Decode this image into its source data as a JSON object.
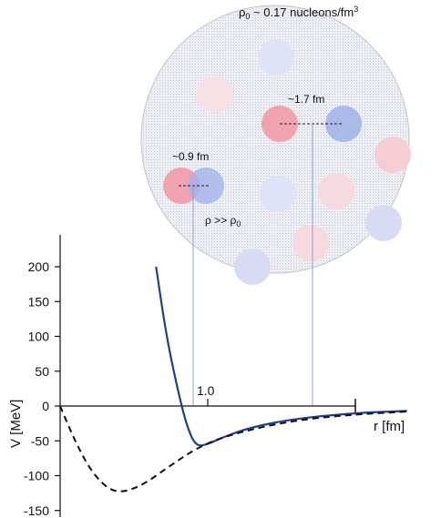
{
  "density_label": {
    "main": "ρ",
    "sub": "0",
    "rest": " ~ 0.17 nucleons/fm",
    "sup": "3"
  },
  "high_density_label": {
    "main": "ρ >> ρ",
    "sub": "0"
  },
  "spacing_labels": {
    "far": "~1.7 fm",
    "near": "~0.9 fm"
  },
  "axes": {
    "ylabel": "V [MeV]",
    "xlabel": "r [fm]",
    "x_tick": "1.0"
  },
  "chart_data": {
    "type": "line",
    "xlabel": "r [fm]",
    "ylabel": "V [MeV]",
    "ylim": [
      -150,
      200
    ],
    "yticks": [
      200,
      150,
      100,
      50,
      0,
      -50,
      -100,
      -150
    ],
    "xticks": [
      1.0
    ],
    "series": [
      {
        "style": "solid",
        "color": "#1f3f8f",
        "x": [
          0.65,
          0.72,
          0.8,
          0.86,
          0.92,
          1.0,
          1.1,
          1.3,
          1.6,
          2.0,
          2.35
        ],
        "y": [
          200,
          100,
          20,
          -30,
          -58,
          -55,
          -45,
          -30,
          -18,
          -10,
          -7
        ]
      },
      {
        "style": "dashed",
        "color": "#111111",
        "x": [
          0.0,
          0.1,
          0.2,
          0.3,
          0.4,
          0.55,
          0.75,
          0.95,
          1.2,
          1.6,
          2.0,
          2.35
        ],
        "y": [
          0,
          -50,
          -90,
          -115,
          -125,
          -115,
          -85,
          -57,
          -38,
          -20,
          -12,
          -8
        ]
      }
    ]
  },
  "colors": {
    "repulsive": "#1f3f8f",
    "nucleus_fill": "#e6e9f0",
    "proton": "#f19aa6",
    "neutron": "#9aa9e6"
  }
}
